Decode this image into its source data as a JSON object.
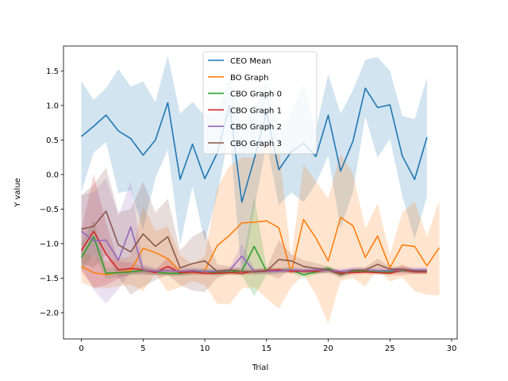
{
  "chart_data": {
    "type": "line",
    "title": "",
    "xlabel": "Trial",
    "ylabel": "Y value",
    "xlim": [
      -1.45,
      30.45
    ],
    "ylim": [
      -2.38,
      1.86
    ],
    "xticks": [
      0,
      5,
      10,
      15,
      20,
      25,
      30
    ],
    "yticks": [
      -2.0,
      -1.5,
      -1.0,
      -0.5,
      0.0,
      0.5,
      1.0,
      1.5
    ],
    "ytick_labels": [
      "−2.0",
      "−1.5",
      "−1.0",
      "−0.5",
      "0.0",
      "0.5",
      "1.0",
      "1.5"
    ],
    "legend_position": "upper-center",
    "grid": false,
    "series": [
      {
        "name": "CEO Mean",
        "color": "#1f77b4",
        "x": [
          0,
          1,
          2,
          3,
          4,
          5,
          6,
          7,
          8,
          9,
          10,
          11,
          12,
          13,
          14,
          15,
          16,
          17,
          18,
          19,
          20,
          21,
          22,
          23,
          24,
          25,
          26,
          27,
          28
        ],
        "values": [
          0.55,
          0.7,
          0.86,
          0.63,
          0.52,
          0.28,
          0.5,
          1.04,
          -0.07,
          0.44,
          -0.06,
          0.31,
          1.0,
          -0.4,
          0.22,
          0.9,
          0.07,
          0.33,
          0.45,
          0.26,
          0.86,
          0.05,
          0.48,
          1.25,
          0.97,
          1.01,
          0.27,
          -0.07,
          0.54
        ],
        "upper": [
          1.35,
          1.08,
          1.25,
          1.53,
          1.27,
          1.35,
          1.05,
          1.72,
          0.88,
          1.05,
          0.85,
          0.92,
          1.38,
          0.7,
          0.95,
          1.35,
          0.58,
          0.92,
          1.3,
          0.65,
          1.45,
          0.88,
          1.22,
          1.66,
          1.7,
          1.5,
          0.85,
          0.8,
          1.4
        ],
        "lower": [
          -0.25,
          0.32,
          0.47,
          -0.27,
          -0.23,
          -0.79,
          -0.05,
          0.36,
          -1.02,
          -0.17,
          -0.97,
          -0.3,
          0.62,
          -1.5,
          -0.51,
          0.45,
          -0.44,
          -0.26,
          -0.4,
          -0.13,
          0.27,
          -0.78,
          -0.26,
          0.84,
          0.24,
          0.52,
          -0.31,
          -0.94,
          -0.32
        ]
      },
      {
        "name": "BO Graph",
        "color": "#ff7f0e",
        "x": [
          0,
          1,
          2,
          3,
          4,
          5,
          6,
          7,
          8,
          9,
          10,
          11,
          12,
          13,
          14,
          15,
          16,
          17,
          18,
          19,
          20,
          21,
          22,
          23,
          24,
          25,
          26,
          27,
          28,
          29
        ],
        "values": [
          -1.33,
          -1.42,
          -1.45,
          -1.42,
          -1.39,
          -1.07,
          -1.13,
          -1.22,
          -1.4,
          -1.42,
          -1.39,
          -1.03,
          -0.88,
          -0.7,
          -0.69,
          -0.67,
          -0.77,
          -1.42,
          -0.65,
          -0.92,
          -1.25,
          -0.62,
          -0.74,
          -1.2,
          -0.89,
          -1.35,
          -1.02,
          -1.04,
          -1.32,
          -1.06
        ],
        "upper": [
          -1.1,
          -1.2,
          -1.25,
          -1.22,
          -1.19,
          -0.45,
          -0.82,
          -0.75,
          -1.17,
          -1.3,
          -1.18,
          -0.19,
          0.12,
          0.25,
          0.25,
          0.45,
          0.4,
          -1.21,
          0.15,
          -0.1,
          -0.34,
          0.3,
          0.02,
          -0.78,
          -0.42,
          -1.15,
          -0.55,
          -0.39,
          -0.9,
          -0.37
        ],
        "lower": [
          -1.56,
          -1.64,
          -1.65,
          -1.62,
          -1.59,
          -1.69,
          -1.44,
          -1.69,
          -1.63,
          -1.54,
          -1.6,
          -1.87,
          -1.88,
          -1.65,
          -1.63,
          -1.79,
          -1.94,
          -1.63,
          -1.45,
          -1.74,
          -2.16,
          -1.54,
          -1.5,
          -1.62,
          -1.36,
          -1.55,
          -1.49,
          -1.69,
          -1.74,
          -1.75
        ]
      },
      {
        "name": "CBO Graph 0",
        "color": "#2ca02c",
        "x": [
          0,
          1,
          2,
          3,
          4,
          5,
          6,
          7,
          8,
          9,
          10,
          11,
          12,
          13,
          14,
          15,
          16,
          17,
          18,
          19,
          20,
          21,
          22,
          23,
          24,
          25,
          26,
          27,
          28
        ],
        "values": [
          -1.2,
          -0.9,
          -1.43,
          -1.42,
          -1.41,
          -1.39,
          -1.41,
          -1.43,
          -1.43,
          -1.41,
          -1.4,
          -1.42,
          -1.41,
          -1.4,
          -1.04,
          -1.4,
          -1.39,
          -1.38,
          -1.45,
          -1.41,
          -1.36,
          -1.44,
          -1.4,
          -1.4,
          -1.41,
          -1.41,
          -1.39,
          -1.4,
          -1.4
        ],
        "upper": [
          -1.0,
          -0.65,
          -1.35,
          -1.36,
          -1.36,
          -1.34,
          -1.37,
          -1.39,
          -1.39,
          -1.37,
          -1.36,
          -1.38,
          -1.37,
          -1.34,
          -0.32,
          -1.34,
          -1.36,
          -1.34,
          -1.4,
          -1.37,
          -1.32,
          -1.4,
          -1.37,
          -1.37,
          -1.38,
          -1.38,
          -1.36,
          -1.37,
          -1.37
        ],
        "lower": [
          -1.4,
          -1.15,
          -1.51,
          -1.48,
          -1.46,
          -1.44,
          -1.45,
          -1.47,
          -1.47,
          -1.45,
          -1.44,
          -1.46,
          -1.45,
          -1.46,
          -1.76,
          -1.46,
          -1.42,
          -1.42,
          -1.5,
          -1.45,
          -1.4,
          -1.48,
          -1.43,
          -1.43,
          -1.44,
          -1.44,
          -1.42,
          -1.43,
          -1.43
        ]
      },
      {
        "name": "CBO Graph 1",
        "color": "#d62728",
        "x": [
          0,
          1,
          2,
          3,
          4,
          5,
          6,
          7,
          8,
          9,
          10,
          11,
          12,
          13,
          14,
          15,
          16,
          17,
          18,
          19,
          20,
          21,
          22,
          23,
          24,
          25,
          26,
          27,
          28
        ],
        "values": [
          -1.1,
          -0.82,
          -1.15,
          -1.38,
          -1.36,
          -1.38,
          -1.42,
          -1.33,
          -1.42,
          -1.41,
          -1.43,
          -1.43,
          -1.42,
          -1.43,
          -1.4,
          -1.39,
          -1.38,
          -1.4,
          -1.4,
          -1.4,
          -1.38,
          -1.42,
          -1.42,
          -1.41,
          -1.42,
          -1.43,
          -1.38,
          -1.41,
          -1.41
        ],
        "upper": [
          -0.8,
          0.0,
          -0.7,
          -1.25,
          -1.28,
          -1.33,
          -1.38,
          -1.2,
          -1.38,
          -1.37,
          -1.4,
          -1.4,
          -1.39,
          -1.4,
          -1.37,
          -1.36,
          -1.35,
          -1.37,
          -1.37,
          -1.37,
          -1.35,
          -1.39,
          -1.39,
          -1.38,
          -1.39,
          -1.4,
          -1.3,
          -1.38,
          -1.38
        ],
        "lower": [
          -1.4,
          -1.64,
          -1.6,
          -1.51,
          -1.44,
          -1.43,
          -1.46,
          -1.46,
          -1.46,
          -1.45,
          -1.46,
          -1.46,
          -1.45,
          -1.46,
          -1.43,
          -1.42,
          -1.41,
          -1.43,
          -1.43,
          -1.43,
          -1.41,
          -1.45,
          -1.45,
          -1.44,
          -1.45,
          -1.46,
          -1.46,
          -1.44,
          -1.44
        ]
      },
      {
        "name": "CBO Graph 2",
        "color": "#9467bd",
        "x": [
          0,
          1,
          2,
          3,
          4,
          5,
          6,
          7,
          8,
          9,
          10,
          11,
          12,
          13,
          14,
          15,
          16,
          17,
          18,
          19,
          20,
          21,
          22,
          23,
          24,
          25,
          26,
          27,
          28
        ],
        "values": [
          -0.82,
          -0.96,
          -0.95,
          -1.24,
          -0.76,
          -1.38,
          -1.4,
          -1.39,
          -1.4,
          -1.39,
          -1.4,
          -1.4,
          -1.39,
          -1.18,
          -1.4,
          -1.4,
          -1.4,
          -1.38,
          -1.39,
          -1.38,
          -1.39,
          -1.4,
          -1.38,
          -1.38,
          -1.39,
          -1.39,
          -1.38,
          -1.38,
          -1.38
        ],
        "upper": [
          -0.3,
          -0.25,
          -0.05,
          -0.6,
          -0.1,
          -1.3,
          -1.35,
          -1.34,
          -1.35,
          -1.34,
          -1.36,
          -1.36,
          -1.35,
          -1.0,
          -1.36,
          -1.36,
          -1.36,
          -1.34,
          -1.35,
          -1.34,
          -1.35,
          -1.36,
          -1.34,
          -1.34,
          -1.35,
          -1.35,
          -1.34,
          -1.34,
          -1.34
        ],
        "lower": [
          -1.34,
          -1.67,
          -1.87,
          -1.66,
          -1.42,
          -1.46,
          -1.45,
          -1.44,
          -1.45,
          -1.44,
          -1.44,
          -1.44,
          -1.43,
          -1.36,
          -1.44,
          -1.44,
          -1.44,
          -1.42,
          -1.43,
          -1.42,
          -1.43,
          -1.44,
          -1.42,
          -1.42,
          -1.43,
          -1.43,
          -1.42,
          -1.42,
          -1.42
        ]
      },
      {
        "name": "CBO Graph 3",
        "color": "#8c564b",
        "x": [
          0,
          1,
          2,
          3,
          4,
          5,
          6,
          7,
          8,
          9,
          10,
          11,
          12,
          13,
          14,
          15,
          16,
          17,
          18,
          19,
          20,
          21,
          22,
          23,
          24,
          25,
          26,
          27,
          28
        ],
        "values": [
          -0.79,
          -0.75,
          -0.53,
          -1.02,
          -1.12,
          -0.86,
          -1.04,
          -0.9,
          -1.35,
          -1.29,
          -1.25,
          -1.4,
          -1.38,
          -1.4,
          -1.41,
          -1.4,
          -1.23,
          -1.25,
          -1.33,
          -1.36,
          -1.38,
          -1.45,
          -1.39,
          -1.38,
          -1.3,
          -1.37,
          -1.37,
          -1.4,
          -1.4
        ],
        "upper": [
          -0.3,
          -0.15,
          0.1,
          -0.55,
          -0.5,
          -0.1,
          -0.55,
          -0.35,
          -1.1,
          -0.9,
          -0.8,
          -1.3,
          -1.33,
          -1.36,
          -1.37,
          -1.36,
          -0.95,
          -1.15,
          -1.24,
          -1.28,
          -1.33,
          -1.4,
          -1.35,
          -1.34,
          -1.22,
          -1.33,
          -1.33,
          -1.36,
          -1.36
        ],
        "lower": [
          -1.28,
          -1.35,
          -1.16,
          -1.49,
          -1.74,
          -1.62,
          -1.53,
          -1.45,
          -1.6,
          -1.68,
          -1.7,
          -1.5,
          -1.43,
          -1.44,
          -1.45,
          -1.44,
          -1.51,
          -1.35,
          -1.42,
          -1.44,
          -1.43,
          -1.5,
          -1.43,
          -1.42,
          -1.38,
          -1.41,
          -1.41,
          -1.44,
          -1.44
        ]
      }
    ]
  }
}
